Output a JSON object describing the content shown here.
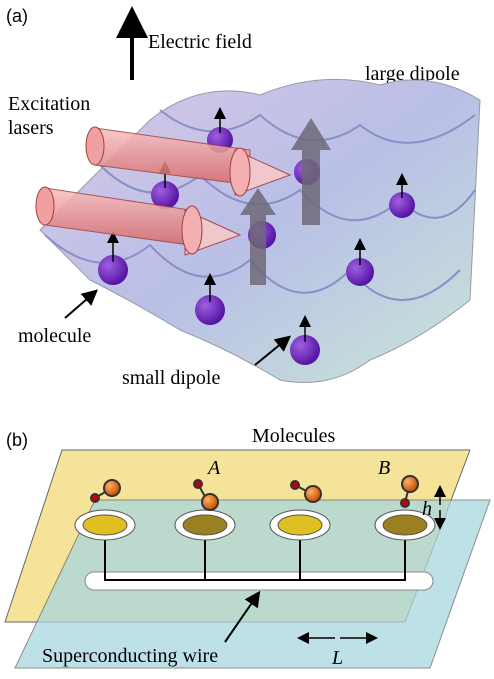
{
  "panel_a": {
    "label": "(a)",
    "electric_field": "Electric field",
    "large_dipole": "large dipole",
    "excitation_lasers": [
      "Excitation",
      "lasers"
    ],
    "molecule": "molecule",
    "small_dipole": "small dipole"
  },
  "panel_b": {
    "label": "(b)",
    "molecules": "Molecules",
    "site_a": "A",
    "site_b": "B",
    "height": "h",
    "wire": "Superconducting wire",
    "spacing": "L"
  }
}
